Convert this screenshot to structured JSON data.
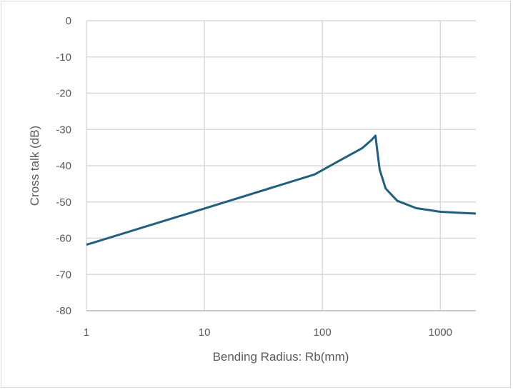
{
  "chart_data": {
    "type": "line",
    "title": "",
    "xlabel": "Bending Radius: Rb(mm)",
    "ylabel": "Cross talk (dB)",
    "xscale": "log",
    "xlim": [
      1,
      2000
    ],
    "ylim": [
      -80,
      0
    ],
    "grid": true,
    "legend": "none",
    "x_ticks": [
      "1",
      "10",
      "100",
      "1000"
    ],
    "x_tick_values": [
      1,
      10,
      100,
      1000
    ],
    "y_ticks": [
      "0",
      "-10",
      "-20",
      "-30",
      "-40",
      "-50",
      "-60",
      "-70",
      "-80"
    ],
    "y_tick_values": [
      0,
      -10,
      -20,
      -30,
      -40,
      -50,
      -60,
      -70,
      -80
    ],
    "series": [
      {
        "name": "Cross talk",
        "color": "#1f5f7f",
        "x": [
          1,
          10,
          86,
          136,
          217,
          261,
          282,
          292,
          306,
          344,
          432,
          624,
          1000,
          2000
        ],
        "y": [
          -61.8,
          -51.8,
          -42.4,
          -38.8,
          -35.2,
          -32.9,
          -31.7,
          -35.8,
          -41.1,
          -46.3,
          -49.7,
          -51.7,
          -52.7,
          -53.2
        ]
      }
    ]
  }
}
